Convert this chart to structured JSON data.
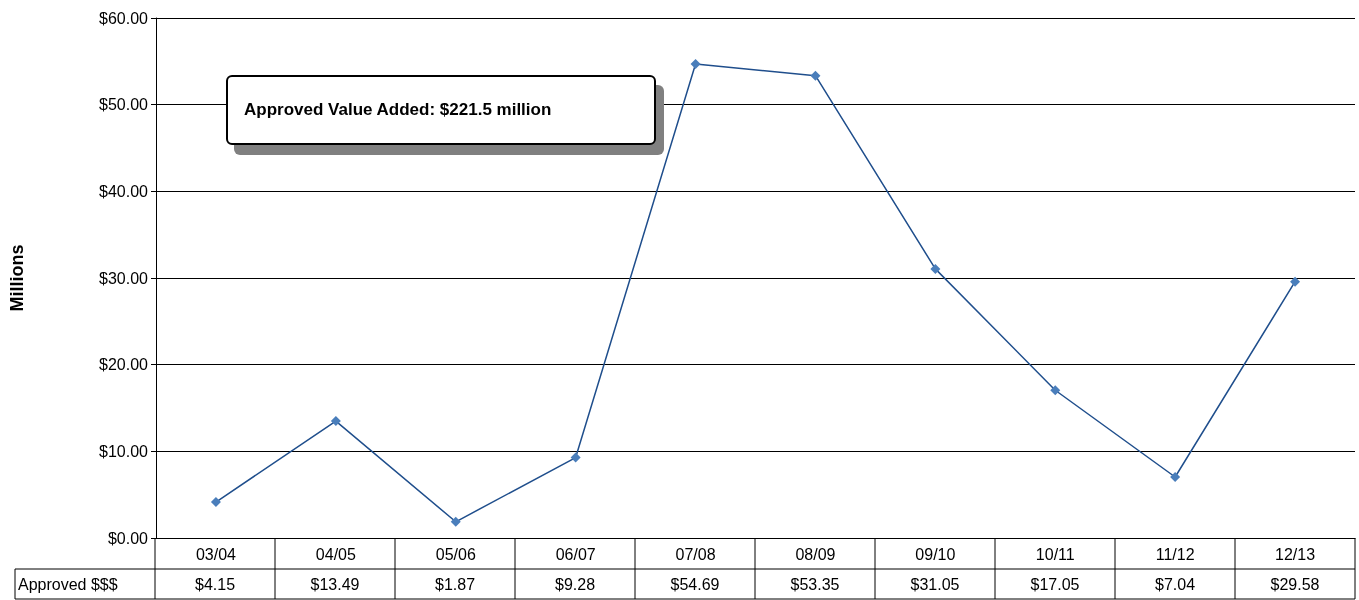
{
  "chart_data": {
    "type": "line",
    "ylabel": "Millions",
    "categories": [
      "03/04",
      "04/05",
      "05/06",
      "06/07",
      "07/08",
      "08/09",
      "09/10",
      "10/11",
      "11/12",
      "12/13"
    ],
    "series": [
      {
        "name": "Approved $$$",
        "color": "#4a7ebb",
        "values": [
          4.15,
          13.49,
          1.87,
          9.28,
          54.69,
          53.35,
          31.05,
          17.05,
          7.04,
          29.58
        ],
        "value_labels": [
          "$4.15",
          "$13.49",
          "$1.87",
          "$9.28",
          "$54.69",
          "$53.35",
          "$31.05",
          "$17.05",
          "$7.04",
          "$29.58"
        ]
      }
    ],
    "ylim": [
      0,
      60
    ],
    "yticks": [
      {
        "value": 0,
        "label": "$0.00"
      },
      {
        "value": 10,
        "label": "$10.00"
      },
      {
        "value": 20,
        "label": "$20.00"
      },
      {
        "value": 30,
        "label": "$30.00"
      },
      {
        "value": 40,
        "label": "$40.00"
      },
      {
        "value": 50,
        "label": "$50.00"
      },
      {
        "value": 60,
        "label": "$60.00"
      }
    ],
    "grid": "y",
    "legend": false,
    "marker": "diamond",
    "line_style": "solid",
    "annotations": [
      "Approved Value Added: $221.5 million"
    ]
  }
}
